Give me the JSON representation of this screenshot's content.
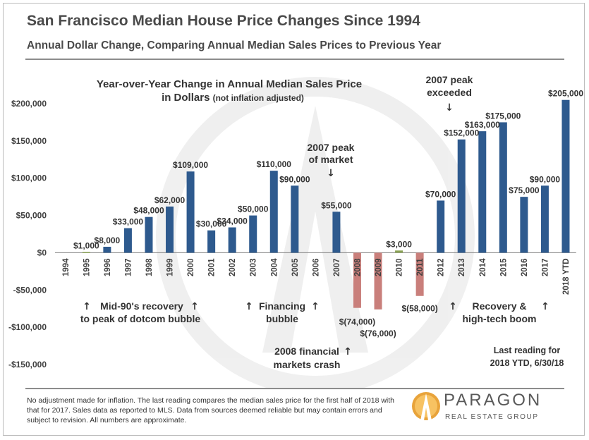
{
  "header": {
    "title": "San Francisco Median House Price Changes Since 1994",
    "subtitle": "Annual Dollar Change, Comparing Annual Median Sales Prices to Previous Year"
  },
  "chart_data": {
    "type": "bar",
    "title_line1": "Year-over-Year Change in Annual Median Sales Price",
    "title_line2_main": "in Dollars",
    "title_line2_note": "(not inflation adjusted)",
    "ylim": [
      -150000,
      200000
    ],
    "yticks": [
      200000,
      150000,
      100000,
      50000,
      0,
      -50000,
      -100000,
      -150000
    ],
    "ytick_labels": [
      "$200,000",
      "$150,000",
      "$100,000",
      "$50,000",
      "$0",
      "-$50,000",
      "-$100,000",
      "-$150,000"
    ],
    "categories": [
      "1994",
      "1995",
      "1996",
      "1997",
      "1998",
      "1999",
      "2000",
      "2001",
      "2002",
      "2003",
      "2004",
      "2005",
      "2006",
      "2007",
      "2008",
      "2009",
      "2010",
      "2011",
      "2012",
      "2013",
      "2014",
      "2015",
      "2016",
      "2017",
      "2018 YTD"
    ],
    "values": [
      0,
      1000,
      8000,
      33000,
      48000,
      62000,
      109000,
      30000,
      34000,
      50000,
      110000,
      90000,
      0,
      55000,
      -74000,
      -76000,
      3000,
      -58000,
      70000,
      152000,
      163000,
      175000,
      75000,
      90000,
      205000
    ],
    "data_labels": [
      "",
      "$1,000",
      "$8,000",
      "$33,000",
      "$48,000",
      "$62,000",
      "$109,000",
      "$30,000",
      "$34,000",
      "$50,000",
      "$110,000",
      "$90,000",
      "",
      "$55,000",
      "$(74,000)",
      "$(76,000)",
      "$3,000",
      "$(58,000)",
      "$70,000",
      "$152,000",
      "$163,000",
      "$175,000",
      "$75,000",
      "$90,000",
      "$205,000"
    ],
    "colors": {
      "positive": "#2e5a8e",
      "negative": "#c97f7b",
      "small_positive": "#8aa254"
    },
    "annotations": {
      "peak_2007": [
        "2007 peak",
        "of market"
      ],
      "peak_exceeded": [
        "2007 peak",
        "exceeded"
      ],
      "mid90s": [
        "Mid-90's recovery",
        "to peak of dotcom bubble"
      ],
      "financing": [
        "Financing",
        "bubble"
      ],
      "crash": [
        "2008 financial",
        "markets crash"
      ],
      "recovery": [
        "Recovery &",
        "high-tech boom"
      ],
      "last_reading": [
        "Last reading for",
        "2018 YTD, 6/30/18"
      ]
    }
  },
  "footnote": "No adjustment made for inflation. The last reading compares the median sales price for the first half of 2018 with that for 2017. Sales data as reported to MLS. Data from sources deemed reliable but may contain errors and subject to revision. All numbers are approximate.",
  "logo": {
    "name": "PARAGON",
    "tagline": "REAL ESTATE GROUP"
  }
}
